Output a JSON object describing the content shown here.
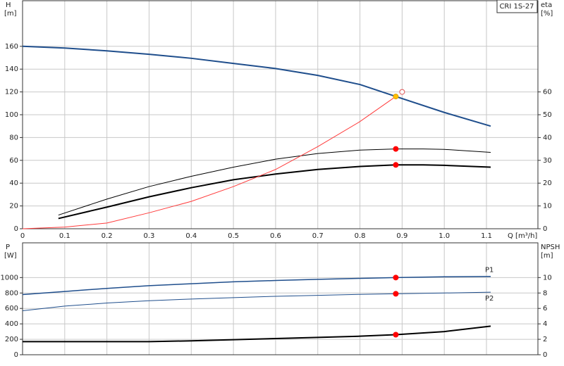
{
  "chart_data": [
    {
      "type": "line",
      "title": "CRI 1S-27",
      "xlabel": "Q [m³/h]",
      "ylabel": "H",
      "yunit": "[m]",
      "y2label": "eta",
      "y2unit": "[%]",
      "xlim": [
        0,
        1.222
      ],
      "xticks": [
        0,
        0.1,
        0.2,
        0.3,
        0.4,
        0.5,
        0.6,
        0.7,
        0.8,
        0.9,
        {
          "value": 1,
          "label": "1.0"
        },
        1.1
      ],
      "ylim": [
        0,
        200
      ],
      "yticks": [
        0,
        20,
        40,
        60,
        80,
        100,
        120,
        140,
        160
      ],
      "y2lim": [
        0,
        100
      ],
      "y2ticks": [
        0,
        10,
        20,
        30,
        40,
        50,
        60
      ],
      "grid": true,
      "series": [
        {
          "color": "#1f4e8c",
          "width": 2,
          "x": [
            0,
            0.1,
            0.2,
            0.3,
            0.4,
            0.5,
            0.6,
            0.7,
            0.8,
            0.885,
            1.0,
            1.11
          ],
          "values": [
            160,
            158.5,
            156,
            153,
            149.5,
            145,
            140.5,
            134.5,
            126.5,
            116,
            102,
            90
          ]
        },
        {
          "color": "#000000",
          "width": 1,
          "axis": "y2",
          "x": [
            0.085,
            0.2,
            0.3,
            0.4,
            0.5,
            0.6,
            0.7,
            0.8,
            0.885,
            0.95,
            1.0,
            1.11
          ],
          "values": [
            6,
            13,
            18.5,
            23,
            27,
            30.5,
            33,
            34.5,
            35,
            35,
            34.8,
            33.5
          ]
        },
        {
          "color": "#000000",
          "width": 2,
          "axis": "y2",
          "x": [
            0.085,
            0.2,
            0.3,
            0.4,
            0.5,
            0.6,
            0.7,
            0.8,
            0.885,
            0.95,
            1.0,
            1.11
          ],
          "values": [
            4.5,
            9.5,
            14,
            18,
            21.5,
            24,
            26,
            27.3,
            28,
            28,
            27.8,
            27
          ]
        },
        {
          "color": "#ff3b3b",
          "width": 1,
          "x": [
            0,
            0.1,
            0.2,
            0.3,
            0.4,
            0.5,
            0.6,
            0.7,
            0.8,
            0.885
          ],
          "values": [
            0,
            1.5,
            5,
            14,
            24,
            37,
            52,
            72,
            94,
            116
          ]
        }
      ],
      "points": [
        {
          "x": 0.885,
          "y": 116,
          "color": "#ffc000"
        },
        {
          "x": 0.9,
          "y": 120,
          "color": "none"
        },
        {
          "x": 0.885,
          "y": 35,
          "axis": "y2",
          "color": "#ff0000"
        },
        {
          "x": 0.885,
          "y": 28,
          "axis": "y2",
          "color": "#ff0000"
        }
      ]
    },
    {
      "type": "line",
      "ylabel": "P",
      "yunit": "[W]",
      "y2label": "NPSH",
      "y2unit": "[m]",
      "xlim": [
        0,
        1.222
      ],
      "ylim": [
        0,
        1450
      ],
      "yticks": [
        0,
        200,
        400,
        600,
        800,
        1000
      ],
      "y2lim": [
        0,
        14.5
      ],
      "y2ticks": [
        0,
        2,
        4,
        6,
        8,
        10
      ],
      "grid": true,
      "series": [
        {
          "name": "P1",
          "color": "#1f4e8c",
          "width": 1.5,
          "x": [
            0,
            0.1,
            0.2,
            0.3,
            0.4,
            0.5,
            0.6,
            0.7,
            0.8,
            0.885,
            1.0,
            1.11
          ],
          "values": [
            780,
            820,
            860,
            895,
            920,
            945,
            962,
            977,
            990,
            1000,
            1010,
            1015
          ]
        },
        {
          "name": "P2",
          "color": "#1f4e8c",
          "width": 1,
          "x": [
            0,
            0.1,
            0.2,
            0.3,
            0.4,
            0.5,
            0.6,
            0.7,
            0.8,
            0.885,
            1.0,
            1.11
          ],
          "values": [
            570,
            630,
            670,
            700,
            722,
            740,
            757,
            770,
            782,
            790,
            800,
            810
          ]
        },
        {
          "color": "#000000",
          "width": 2,
          "axis": "y2",
          "x": [
            0,
            0.3,
            0.4,
            0.5,
            0.6,
            0.7,
            0.8,
            0.885,
            1.0,
            1.11
          ],
          "values": [
            1.7,
            1.7,
            1.8,
            1.95,
            2.1,
            2.25,
            2.4,
            2.6,
            3.0,
            3.7
          ]
        }
      ],
      "points": [
        {
          "x": 0.885,
          "y": 1000,
          "color": "#ff0000"
        },
        {
          "x": 0.885,
          "y": 790,
          "color": "#ff0000"
        },
        {
          "x": 0.885,
          "y": 2.6,
          "axis": "y2",
          "color": "#ff0000"
        }
      ]
    }
  ]
}
